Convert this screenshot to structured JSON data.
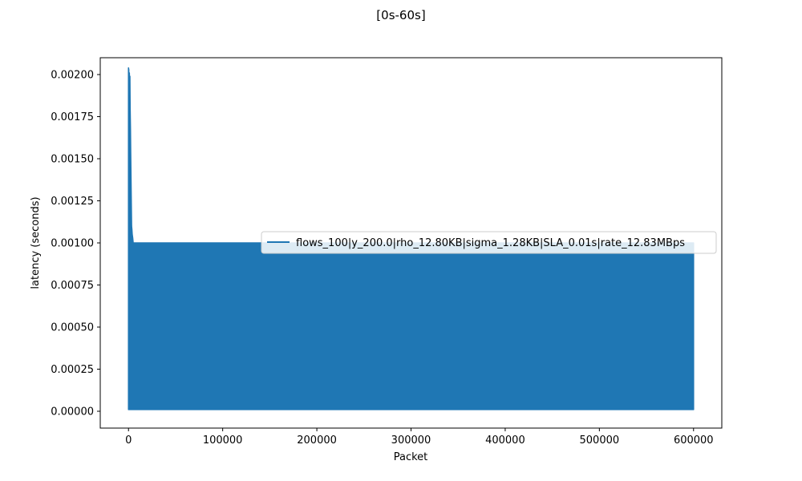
{
  "chart_data": {
    "type": "line",
    "title": "[0s-60s]",
    "xlabel": "Packet",
    "ylabel": "latency (seconds)",
    "xlim": [
      -30000,
      630000
    ],
    "ylim": [
      -0.0001,
      0.0021
    ],
    "xticks": [
      0,
      100000,
      200000,
      300000,
      400000,
      500000,
      600000
    ],
    "xtick_labels": [
      "0",
      "100000",
      "200000",
      "300000",
      "400000",
      "500000",
      "600000"
    ],
    "yticks": [
      0.0,
      0.00025,
      0.0005,
      0.00075,
      0.001,
      0.00125,
      0.0015,
      0.00175,
      0.002
    ],
    "ytick_labels": [
      "0.00000",
      "0.00025",
      "0.00050",
      "0.00075",
      "0.00100",
      "0.00125",
      "0.00150",
      "0.00175",
      "0.00200"
    ],
    "legend_position": "center-right",
    "grid": false,
    "series": [
      {
        "name": "flows_100|y_200.0|rho_12.80KB|sigma_1.28KB|SLA_0.01s|rate_12.83MBps",
        "color": "#1f77b4",
        "x": [
          0,
          300,
          600,
          900,
          1200,
          1500,
          1800,
          2100,
          2400,
          2700,
          3000,
          3300,
          3600,
          4000,
          4500,
          5000,
          5500,
          6000,
          600000
        ],
        "y_max": [
          0.00204,
          0.00203,
          0.00188,
          0.00201,
          0.00196,
          0.00199,
          0.0018,
          0.00168,
          0.00154,
          0.00138,
          0.00122,
          0.0011,
          0.00108,
          0.00105,
          0.00103,
          0.001,
          0.001,
          0.001,
          0.001
        ],
        "y_min": [
          1e-05,
          1e-05,
          1e-05,
          1e-05,
          1e-05,
          1e-05,
          1e-05,
          1e-05,
          1e-05,
          1e-05,
          1e-05,
          1e-05,
          1e-05,
          1e-05,
          1e-05,
          1e-05,
          1e-05,
          1e-05,
          1e-05
        ]
      }
    ]
  }
}
